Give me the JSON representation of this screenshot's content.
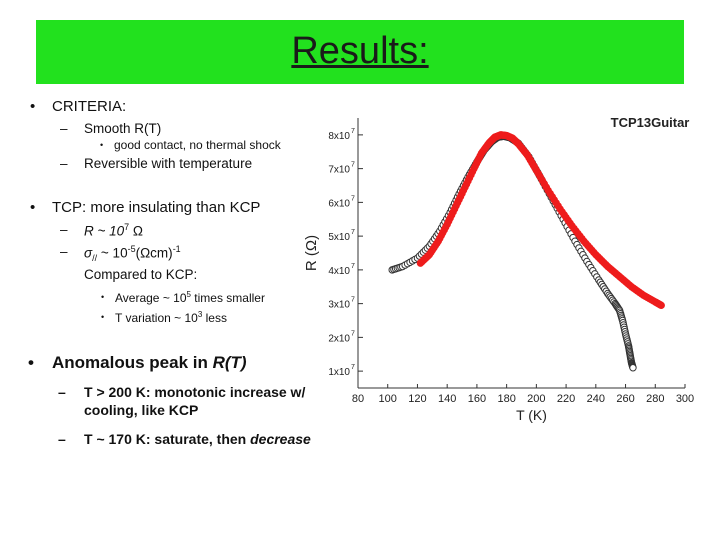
{
  "slide": {
    "title": "Results:",
    "criteria": "CRITERIA:",
    "criteria_items": {
      "smooth": "Smooth R(T)",
      "good_contact": "good contact, no thermal shock",
      "reversible": "Reversible with temperature"
    },
    "tcp": "TCP: more insulating than KCP",
    "tcp_items": {
      "r": "R ~ 10",
      "r_exp": "7",
      "r_unit": " Ω",
      "sigma_prefix": "σ",
      "sigma_sub": "//",
      "sigma_mid": " ~ 10",
      "sigma_exp": "-5",
      "sigma_unit": "(Ωcm)",
      "sigma_unit_exp": "-1",
      "compared": "Compared to KCP:",
      "average": "Average ~ 10",
      "average_exp": "5",
      "average_end": " times smaller",
      "variation": "T variation ~ 10",
      "variation_exp": "3",
      "variation_end": " less"
    },
    "anomalous_prefix": "Anomalous peak in ",
    "anomalous_em": "R(T)",
    "anomalous_items": {
      "above_line1": "T > 200 K: monotonic increase w/",
      "above_line2": "cooling, like KCP",
      "below_prefix": "T ~ 170 K: saturate, then ",
      "below_em": "decrease"
    },
    "colors": {
      "title_bar": "#22e11e",
      "series_red": "#ee1c1c",
      "series_white": "#ffffff"
    }
  },
  "chart_data": {
    "type": "scatter",
    "title": "TCP13Guitar",
    "xlabel": "T (K)",
    "ylabel": "R (Ω)",
    "xlim": [
      80,
      300
    ],
    "ylim": [
      5000000,
      85000000
    ],
    "xticks": [
      80,
      100,
      120,
      140,
      160,
      180,
      200,
      220,
      240,
      260,
      280,
      300
    ],
    "yticks": [
      {
        "value": 10000000,
        "label": "1x10",
        "exp": "7"
      },
      {
        "value": 20000000,
        "label": "2x10",
        "exp": "7"
      },
      {
        "value": 30000000,
        "label": "3x10",
        "exp": "7"
      },
      {
        "value": 40000000,
        "label": "4x10",
        "exp": "7"
      },
      {
        "value": 50000000,
        "label": "5x10",
        "exp": "7"
      },
      {
        "value": 60000000,
        "label": "6x10",
        "exp": "7"
      },
      {
        "value": 70000000,
        "label": "7x10",
        "exp": "7"
      },
      {
        "value": 80000000,
        "label": "8x10",
        "exp": "7"
      }
    ],
    "grid": false,
    "series": [
      {
        "style": "open-circles",
        "x": [
          103,
          110,
          120,
          128,
          135,
          142,
          148,
          154,
          160,
          165,
          170,
          174,
          178,
          182,
          188,
          195,
          202,
          210,
          218,
          226,
          234,
          242,
          248,
          253,
          256,
          258,
          260,
          262,
          263,
          264,
          265
        ],
        "y": [
          40000000,
          41000000,
          43500000,
          47000000,
          51500000,
          57000000,
          62500000,
          67500000,
          72000000,
          75500000,
          78000000,
          79300000,
          79600000,
          79200000,
          77500000,
          73500000,
          68000000,
          61500000,
          55000000,
          48500000,
          42500000,
          37000000,
          33000000,
          30000000,
          28000000,
          25000000,
          21000000,
          17500000,
          15000000,
          12500000,
          11000000
        ]
      },
      {
        "style": "red-filled",
        "x": [
          122,
          128,
          134,
          140,
          146,
          152,
          158,
          163,
          168,
          172,
          176,
          180,
          184,
          188,
          194,
          200,
          208,
          216,
          224,
          232,
          240,
          248,
          256,
          264,
          272,
          280,
          284
        ],
        "y": [
          42000000,
          44500000,
          48500000,
          53500000,
          59000000,
          64500000,
          70000000,
          74500000,
          77500000,
          79300000,
          80000000,
          79800000,
          79000000,
          77300000,
          74000000,
          69500000,
          63500000,
          58000000,
          53000000,
          48500000,
          44500000,
          41000000,
          38000000,
          35000000,
          32500000,
          30500000,
          29500000
        ]
      }
    ]
  }
}
